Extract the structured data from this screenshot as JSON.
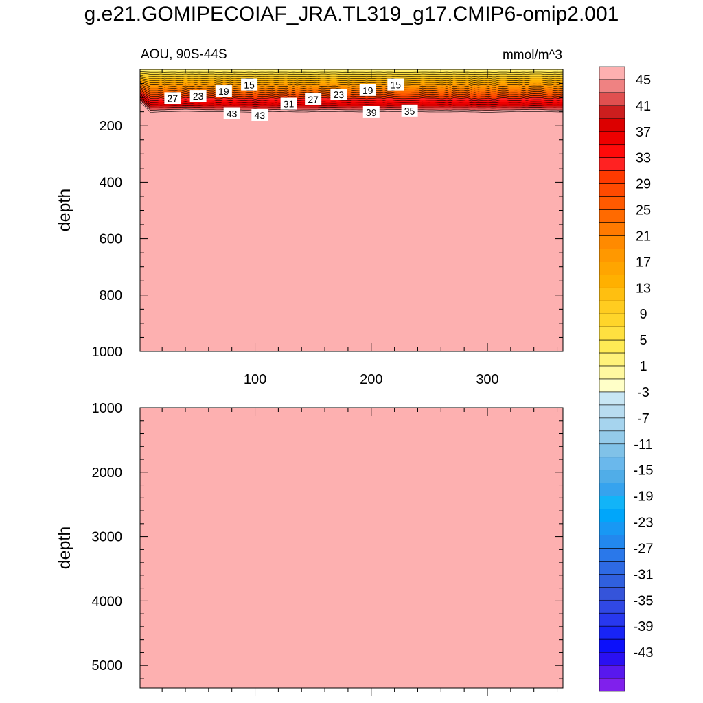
{
  "title": "g.e21.GOMIPECOIAF_JRA.TL319_g17.CMIP6-omip2.001",
  "chart_data": [
    {
      "type": "contour",
      "title": "",
      "region_label": "AOU, 90S-44S",
      "units_label": "mmol/m^3",
      "xlabel": "",
      "ylabel": "depth",
      "xlim": [
        1,
        365
      ],
      "ylim": [
        1000,
        0
      ],
      "x_ticks": [
        100,
        200,
        300
      ],
      "y_ticks": [
        200,
        400,
        600,
        800,
        1000
      ],
      "background_value": 47,
      "surface_front": {
        "x": [
          1,
          10,
          20,
          40,
          60,
          80,
          100,
          120,
          140,
          160,
          180,
          200,
          220,
          240,
          260,
          280,
          300,
          320,
          340,
          365
        ],
        "top_depth": [
          [
            1,
            10
          ],
          [
            365,
            10
          ]
        ],
        "bottom_depth": [
          115,
          152,
          150,
          148,
          150,
          150,
          152,
          149,
          151,
          149,
          150,
          151,
          149,
          150,
          151,
          150,
          152,
          150,
          149,
          151
        ]
      },
      "contour_labels": [
        {
          "text": "27",
          "x": 29,
          "depth": 103
        },
        {
          "text": "23",
          "x": 51,
          "depth": 95
        },
        {
          "text": "19",
          "x": 73,
          "depth": 78
        },
        {
          "text": "15",
          "x": 95,
          "depth": 55
        },
        {
          "text": "43",
          "x": 80,
          "depth": 157
        },
        {
          "text": "43",
          "x": 104,
          "depth": 163
        },
        {
          "text": "31",
          "x": 129,
          "depth": 123
        },
        {
          "text": "27",
          "x": 150,
          "depth": 107
        },
        {
          "text": "23",
          "x": 172,
          "depth": 90
        },
        {
          "text": "19",
          "x": 197,
          "depth": 75
        },
        {
          "text": "15",
          "x": 221,
          "depth": 55
        },
        {
          "text": "39",
          "x": 200,
          "depth": 153
        },
        {
          "text": "35",
          "x": 233,
          "depth": 148
        }
      ]
    },
    {
      "type": "contour",
      "title": "",
      "xlabel": "",
      "ylabel": "depth",
      "xlim": [
        1,
        365
      ],
      "ylim": [
        5350,
        1000
      ],
      "y_ticks": [
        1000,
        2000,
        3000,
        4000,
        5000
      ],
      "background_value": 47
    }
  ],
  "colorbar": {
    "labels": [
      "45",
      "41",
      "37",
      "33",
      "29",
      "25",
      "21",
      "17",
      "13",
      "9",
      "5",
      "1",
      "-3",
      "-7",
      "-11",
      "-15",
      "-19",
      "-23",
      "-27",
      "-31",
      "-35",
      "-39",
      "-43"
    ],
    "colors": [
      "#fdb0b0",
      "#ef8282",
      "#e05050",
      "#cc1e1e",
      "#dc0000",
      "#ee0000",
      "#ff0a0a",
      "#ff2222",
      "#ff3a00",
      "#ff4a00",
      "#ff5a00",
      "#ff6a00",
      "#ff7a00",
      "#ff8a00",
      "#ff9800",
      "#ffa500",
      "#ffb000",
      "#ffbf10",
      "#ffcc20",
      "#ffd52a",
      "#ffe040",
      "#ffeb55",
      "#fff27a",
      "#fff8a0",
      "#ffffc8",
      "#c8e6f4",
      "#b8dcf0",
      "#a6d4ee",
      "#94cbea",
      "#80c2e8",
      "#6ab8ec",
      "#50ade8",
      "#36a3ee",
      "#12b4f8",
      "#00a6fa",
      "#1898f4",
      "#2288ee",
      "#2a78ea",
      "#2e6ae4",
      "#3060de",
      "#3554da",
      "#3048e4",
      "#2838ee",
      "#1824f6",
      "#0c10fa",
      "#2a10f2",
      "#5818ee",
      "#8020ec"
    ]
  }
}
